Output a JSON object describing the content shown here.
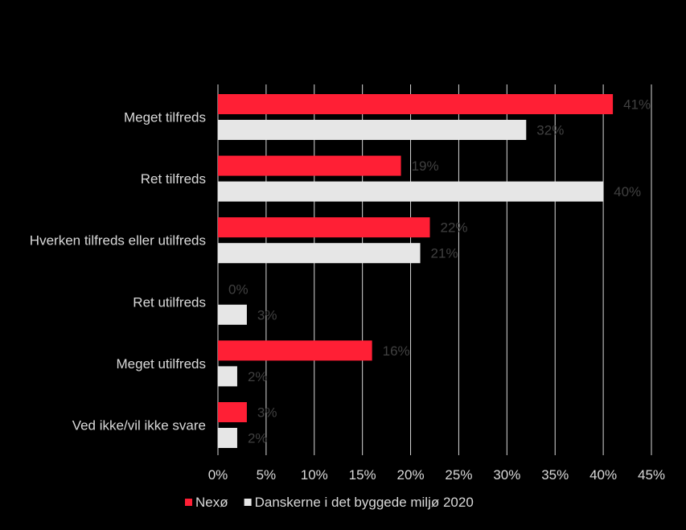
{
  "chart_data": {
    "type": "bar",
    "orientation": "horizontal",
    "categories": [
      "Meget tilfreds",
      "Ret tilfreds",
      "Hverken tilfreds eller utilfreds",
      "Ret utilfreds",
      "Meget utilfreds",
      "Ved ikke/vil ikke svare"
    ],
    "series": [
      {
        "name": "Nexø",
        "color": "#ff1f35",
        "values": [
          41,
          19,
          22,
          0,
          16,
          3
        ],
        "labels": [
          "41%",
          "19%",
          "22%",
          "0%",
          "16%",
          "3%"
        ]
      },
      {
        "name": "Danskerne i det byggede miljø 2020",
        "color": "#e6e6e6",
        "values": [
          32,
          40,
          21,
          3,
          2,
          2
        ],
        "labels": [
          "32%",
          "40%",
          "21%",
          "3%",
          "2%",
          "2%"
        ]
      }
    ],
    "xlim": [
      0,
      45
    ],
    "xticks": [
      0,
      5,
      10,
      15,
      20,
      25,
      30,
      35,
      40,
      45
    ],
    "xtick_labels": [
      "0%",
      "5%",
      "10%",
      "15%",
      "20%",
      "25%",
      "30%",
      "35%",
      "40%",
      "45%"
    ],
    "grid": "vertical",
    "legend_position": "bottom",
    "title": "",
    "xlabel": "",
    "ylabel": ""
  },
  "colors": {
    "background": "#000000",
    "gridline": "#d9d9d9",
    "text": "#d9d9d9",
    "data_label": "#404040"
  }
}
